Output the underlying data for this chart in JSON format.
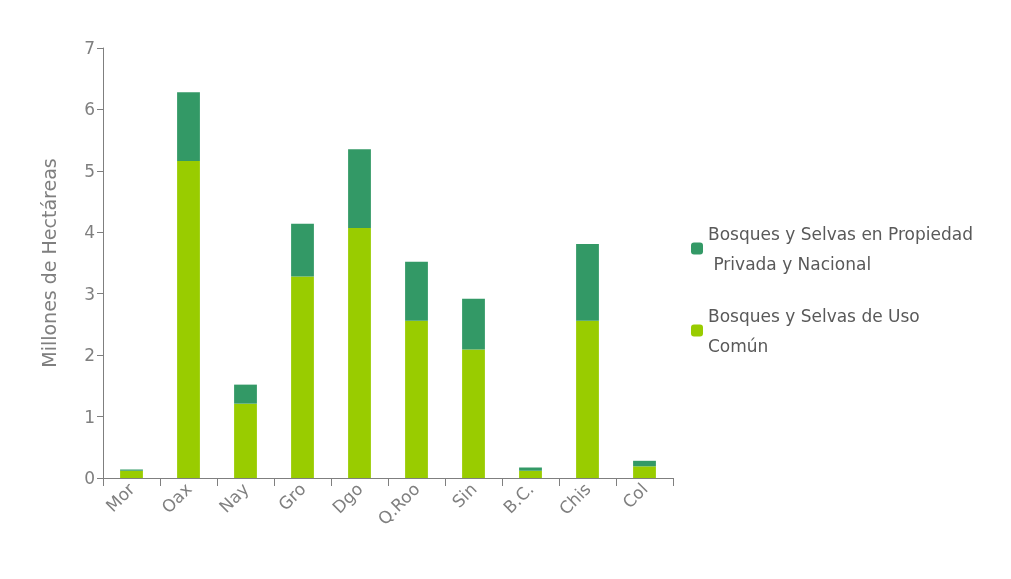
{
  "chart_data": {
    "type": "bar",
    "stacked": true,
    "ylabel": "Millones de Hectáreas",
    "categories": [
      "Mor",
      "Oax",
      "Nay",
      "Gro",
      "Dgo",
      "Q.Roo",
      "Sin",
      "B.C.",
      "Chis",
      "Col"
    ],
    "series": [
      {
        "name": "Bosques y Selvas de Uso Común",
        "color": "#99cc00",
        "values": [
          0.12,
          5.16,
          1.21,
          3.28,
          4.07,
          2.56,
          2.09,
          0.12,
          2.56,
          0.19
        ]
      },
      {
        "name": "Bosques y Selvas en Propiedad Privada y Nacional",
        "color": "#339966",
        "values": [
          0.02,
          1.12,
          0.31,
          0.86,
          1.28,
          0.96,
          0.83,
          0.05,
          1.25,
          0.09
        ]
      }
    ],
    "ylim": [
      0,
      7
    ],
    "yticks": [
      0,
      1,
      2,
      3,
      4,
      5,
      6,
      7
    ],
    "grid": false,
    "legend": "right"
  }
}
